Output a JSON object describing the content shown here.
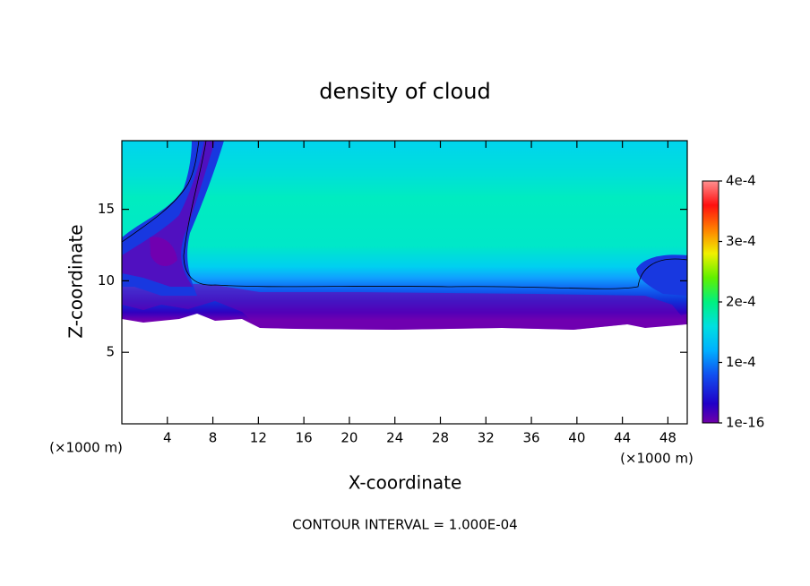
{
  "chart_data": {
    "type": "contour",
    "title": "density of cloud",
    "xlabel": "X-coordinate",
    "ylabel": "Z-coordinate",
    "xunit": "(×1000 m)",
    "yunit": "(×1000 m)",
    "annotation": "CONTOUR INTERVAL = 1.000E-04",
    "xlim": [
      0,
      49.7
    ],
    "xticks": [
      4,
      8,
      12,
      16,
      20,
      24,
      28,
      32,
      36,
      40,
      44,
      48
    ],
    "ylim": [
      0,
      19.8
    ],
    "yticks": [
      5,
      10,
      15
    ],
    "clim": [
      1e-16,
      0.0004
    ],
    "cticks": [
      {
        "value": 1e-16,
        "label": "1e-16"
      },
      {
        "value": 0.0001,
        "label": "1e-4"
      },
      {
        "value": 0.0002,
        "label": "2e-4"
      },
      {
        "value": 0.0003,
        "label": "3e-4"
      },
      {
        "value": 0.0004,
        "label": "4e-4"
      }
    ]
  }
}
